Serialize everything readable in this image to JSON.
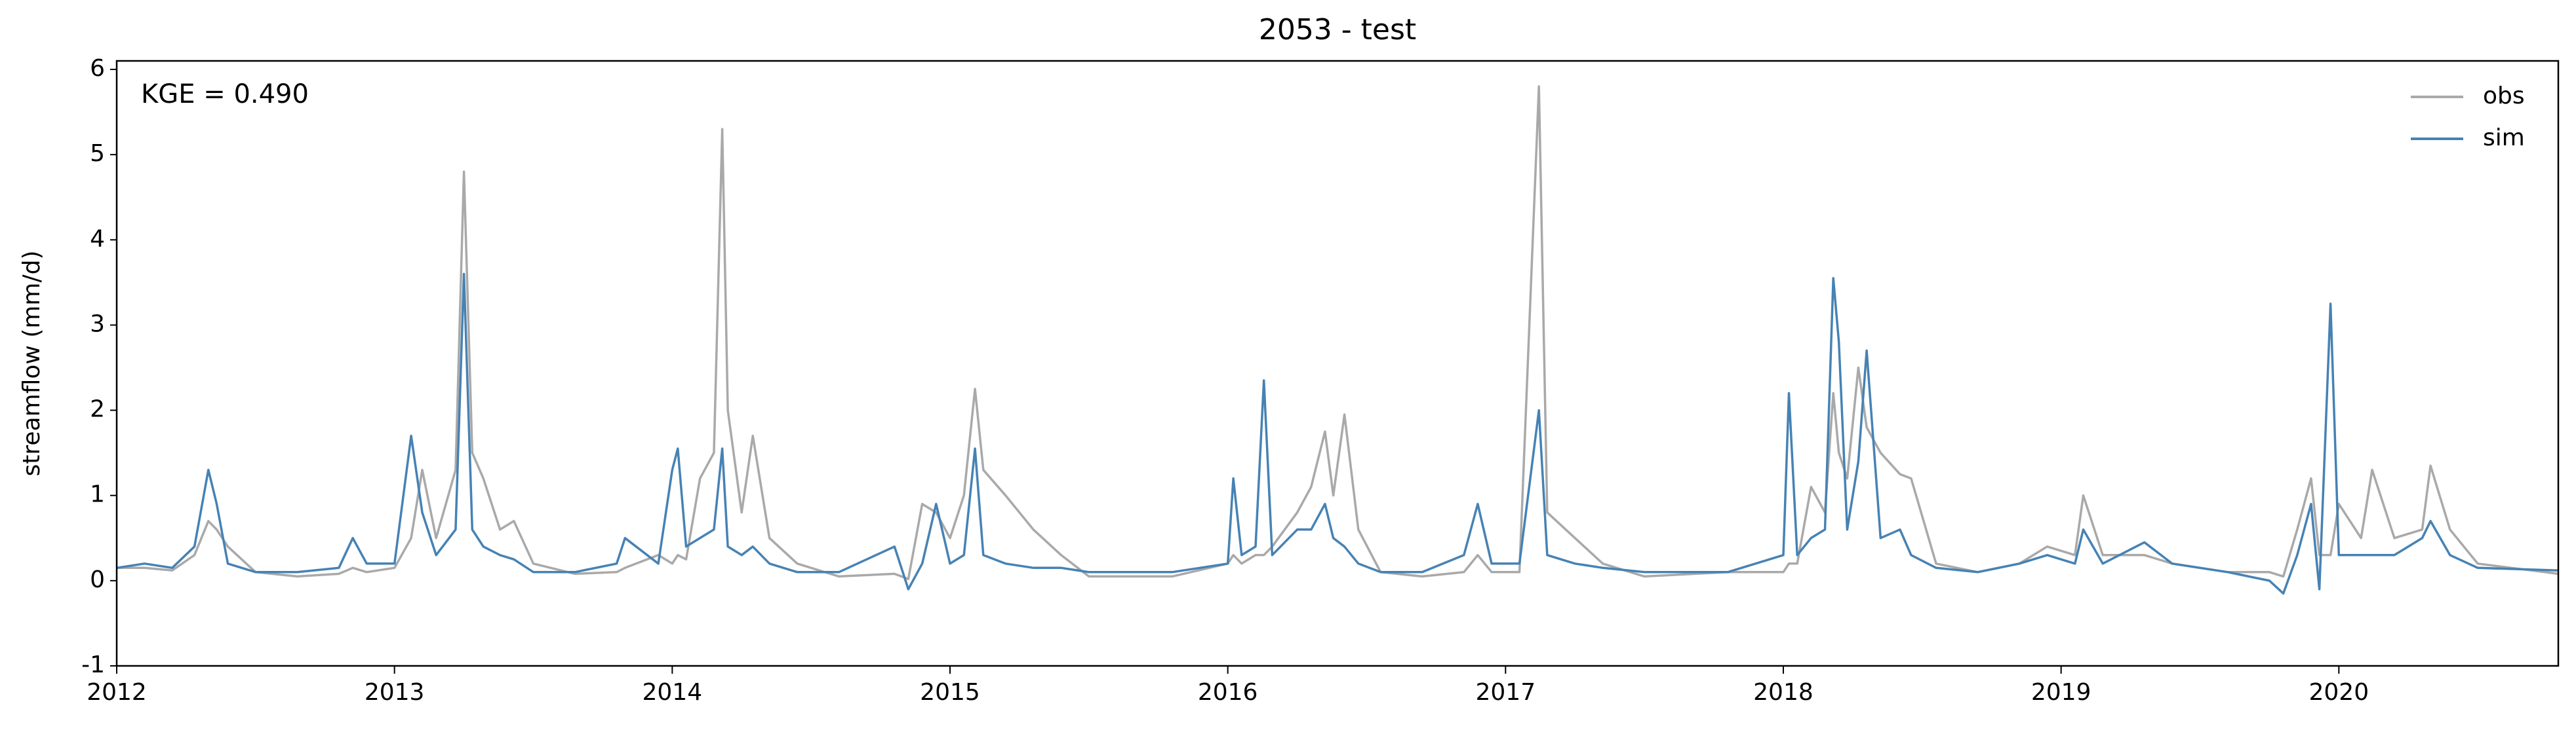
{
  "chart_data": {
    "type": "line",
    "title": "2053 - test",
    "ylabel": "streamflow (mm/d)",
    "annotation": "KGE = 0.490",
    "x": [
      2012.0,
      2012.1,
      2012.2,
      2012.28,
      2012.33,
      2012.36,
      2012.4,
      2012.5,
      2012.65,
      2012.8,
      2012.85,
      2012.9,
      2013.0,
      2013.06,
      2013.1,
      2013.15,
      2013.22,
      2013.25,
      2013.28,
      2013.32,
      2013.38,
      2013.43,
      2013.5,
      2013.65,
      2013.8,
      2013.83,
      2013.95,
      2014.0,
      2014.02,
      2014.05,
      2014.1,
      2014.15,
      2014.18,
      2014.2,
      2014.25,
      2014.29,
      2014.35,
      2014.45,
      2014.6,
      2014.8,
      2014.85,
      2014.9,
      2014.95,
      2015.0,
      2015.05,
      2015.09,
      2015.12,
      2015.2,
      2015.3,
      2015.4,
      2015.5,
      2015.8,
      2016.0,
      2016.02,
      2016.05,
      2016.1,
      2016.13,
      2016.16,
      2016.25,
      2016.3,
      2016.35,
      2016.38,
      2016.42,
      2016.47,
      2016.55,
      2016.7,
      2016.85,
      2016.9,
      2016.95,
      2017.05,
      2017.12,
      2017.15,
      2017.25,
      2017.35,
      2017.5,
      2017.8,
      2018.0,
      2018.02,
      2018.05,
      2018.1,
      2018.15,
      2018.18,
      2018.2,
      2018.23,
      2018.27,
      2018.3,
      2018.35,
      2018.42,
      2018.46,
      2018.55,
      2018.7,
      2018.85,
      2018.95,
      2019.05,
      2019.08,
      2019.15,
      2019.3,
      2019.4,
      2019.6,
      2019.75,
      2019.8,
      2019.85,
      2019.9,
      2019.93,
      2019.97,
      2020.0,
      2020.08,
      2020.12,
      2020.2,
      2020.3,
      2020.33,
      2020.4,
      2020.5,
      2020.79
    ],
    "series": [
      {
        "name": "obs",
        "color": "#a9a9a9",
        "values": [
          0.15,
          0.15,
          0.12,
          0.3,
          0.7,
          0.6,
          0.4,
          0.1,
          0.05,
          0.08,
          0.15,
          0.1,
          0.15,
          0.5,
          1.3,
          0.5,
          1.3,
          4.8,
          1.5,
          1.2,
          0.6,
          0.7,
          0.2,
          0.08,
          0.1,
          0.15,
          0.3,
          0.2,
          0.3,
          0.25,
          1.2,
          1.5,
          5.3,
          2.0,
          0.8,
          1.7,
          0.5,
          0.2,
          0.05,
          0.08,
          0.02,
          0.9,
          0.8,
          0.5,
          1.0,
          2.25,
          1.3,
          1.0,
          0.6,
          0.3,
          0.05,
          0.05,
          0.2,
          0.3,
          0.2,
          0.3,
          0.3,
          0.4,
          0.8,
          1.1,
          1.75,
          1.0,
          1.95,
          0.6,
          0.1,
          0.05,
          0.1,
          0.3,
          0.1,
          0.1,
          5.8,
          0.8,
          0.5,
          0.2,
          0.05,
          0.1,
          0.1,
          0.2,
          0.2,
          1.1,
          0.8,
          2.2,
          1.5,
          1.2,
          2.5,
          1.8,
          1.5,
          1.25,
          1.2,
          0.2,
          0.1,
          0.2,
          0.4,
          0.3,
          1.0,
          0.3,
          0.3,
          0.2,
          0.1,
          0.1,
          0.05,
          0.6,
          1.2,
          0.3,
          0.3,
          0.9,
          0.5,
          1.3,
          0.5,
          0.6,
          1.35,
          0.6,
          0.2,
          0.08
        ]
      },
      {
        "name": "sim",
        "color": "#4682b4",
        "values": [
          0.15,
          0.2,
          0.15,
          0.4,
          1.3,
          0.9,
          0.2,
          0.1,
          0.1,
          0.15,
          0.5,
          0.2,
          0.2,
          1.7,
          0.8,
          0.3,
          0.6,
          3.6,
          0.6,
          0.4,
          0.3,
          0.25,
          0.1,
          0.1,
          0.2,
          0.5,
          0.2,
          1.3,
          1.55,
          0.4,
          0.5,
          0.6,
          1.55,
          0.4,
          0.3,
          0.4,
          0.2,
          0.1,
          0.1,
          0.4,
          -0.1,
          0.2,
          0.9,
          0.2,
          0.3,
          1.55,
          0.3,
          0.2,
          0.15,
          0.15,
          0.1,
          0.1,
          0.2,
          1.2,
          0.3,
          0.4,
          2.35,
          0.3,
          0.6,
          0.6,
          0.9,
          0.5,
          0.4,
          0.2,
          0.1,
          0.1,
          0.3,
          0.9,
          0.2,
          0.2,
          2.0,
          0.3,
          0.2,
          0.15,
          0.1,
          0.1,
          0.3,
          2.2,
          0.3,
          0.5,
          0.6,
          3.55,
          2.8,
          0.6,
          1.4,
          2.7,
          0.5,
          0.6,
          0.3,
          0.15,
          0.1,
          0.2,
          0.3,
          0.2,
          0.6,
          0.2,
          0.45,
          0.2,
          0.1,
          0.0,
          -0.15,
          0.3,
          0.9,
          -0.1,
          3.25,
          0.3,
          0.3,
          0.3,
          0.3,
          0.5,
          0.7,
          0.3,
          0.15,
          0.12
        ]
      }
    ],
    "xlim": [
      2012,
      2020.79
    ],
    "xticks": [
      2012,
      2013,
      2014,
      2015,
      2016,
      2017,
      2018,
      2019,
      2020
    ],
    "ylim": [
      -1,
      6.1
    ],
    "yticks": [
      -1,
      0,
      1,
      2,
      3,
      4,
      5,
      6
    ],
    "legend": "upper right"
  }
}
